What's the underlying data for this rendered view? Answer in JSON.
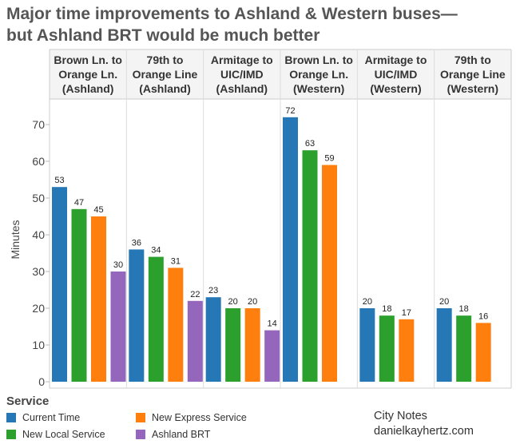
{
  "title_lines": [
    "Major time improvements to Ashland & Western buses—",
    "but Ashland BRT would be much better"
  ],
  "chart_data": {
    "type": "bar",
    "ylabel": "Minutes",
    "ylim": [
      0,
      75
    ],
    "yticks": [
      0,
      10,
      20,
      30,
      40,
      50,
      60,
      70
    ],
    "grid": false,
    "legend_placement": "bottom-left",
    "categories": [
      [
        "Brown Ln. to",
        "Orange Ln.",
        "(Ashland)"
      ],
      [
        "79th to",
        "Orange Line",
        "(Ashland)"
      ],
      [
        "Armitage to",
        "UIC/IMD",
        "(Ashland)"
      ],
      [
        "Brown Ln. to",
        "Orange Ln.",
        "(Western)"
      ],
      [
        "Armitage to",
        "UIC/IMD",
        "(Western)"
      ],
      [
        "79th to",
        "Orange Line",
        "(Western)"
      ]
    ],
    "series": [
      {
        "name": "Current Time",
        "color": "#2677b5",
        "values": [
          53,
          36,
          23,
          72,
          20,
          20
        ]
      },
      {
        "name": "New Local Service",
        "color": "#2ca02c",
        "values": [
          47,
          34,
          20,
          63,
          18,
          18
        ]
      },
      {
        "name": "New Express Service",
        "color": "#ff7f0e",
        "values": [
          45,
          31,
          20,
          59,
          17,
          16
        ]
      },
      {
        "name": "Ashland BRT",
        "color": "#9467bd",
        "values": [
          30,
          22,
          14,
          null,
          null,
          null
        ]
      }
    ]
  },
  "legend": {
    "title": "Service",
    "items": [
      {
        "label": "Current Time",
        "color": "#2677b5"
      },
      {
        "label": "New Express Service",
        "color": "#ff7f0e"
      },
      {
        "label": "New Local Service",
        "color": "#2ca02c"
      },
      {
        "label": "Ashland BRT",
        "color": "#9467bd"
      }
    ]
  },
  "credit": {
    "line1": "City Notes",
    "line2": "danielkayhertz.com"
  }
}
